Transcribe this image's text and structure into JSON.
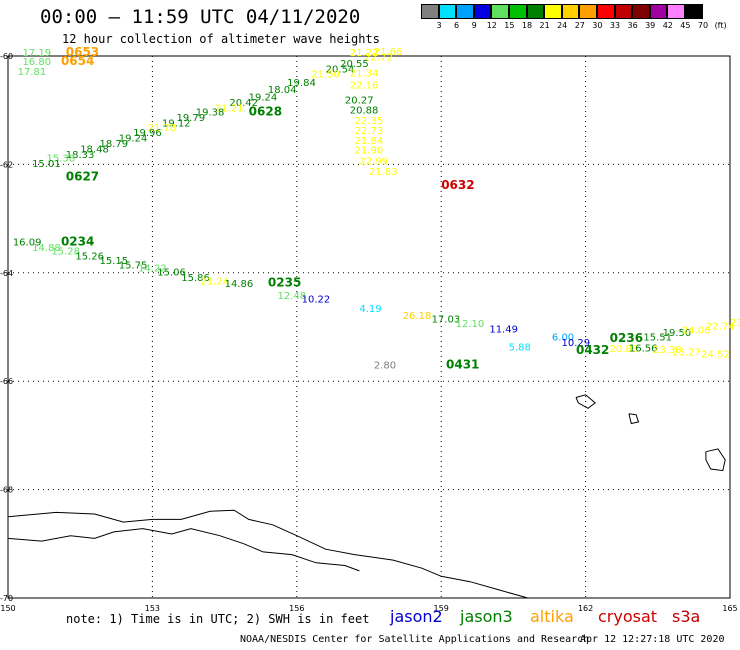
{
  "header": {
    "title": "00:00 – 11:59 UTC 04/11/2020",
    "subtitle": "12 hour collection of altimeter wave heights"
  },
  "colorbar": {
    "labels": [
      "3",
      "6",
      "9",
      "12",
      "15",
      "18",
      "21",
      "24",
      "27",
      "30",
      "33",
      "36",
      "39",
      "42",
      "45",
      "70",
      "(ft)"
    ],
    "colors": [
      "#808080",
      "#00e0ff",
      "#00a0ff",
      "#0000e0",
      "#60e060",
      "#00c000",
      "#008000",
      "#ffff00",
      "#ffd000",
      "#ffa000",
      "#ff0000",
      "#c00000",
      "#800000",
      "#a000a0",
      "#ff80ff",
      "#000000"
    ]
  },
  "axes": {
    "lon_ticks": [
      "150",
      "153",
      "156",
      "159",
      "162",
      "165"
    ],
    "lat_ticks": [
      "-60",
      "-62",
      "-64",
      "-66",
      "-68",
      "-70"
    ]
  },
  "legend": {
    "jason2": {
      "label": "jason2",
      "color": "#0000d0"
    },
    "jason3": {
      "label": "jason3",
      "color": "#008000"
    },
    "altika": {
      "label": "altika",
      "color": "#ffa000"
    },
    "cryosat": {
      "label": "cryosat",
      "color": "#d00000"
    },
    "s3a": {
      "label": "s3a",
      "color": "#c00000"
    }
  },
  "footer": {
    "note": "note: 1) Time is in UTC; 2) SWH is in feet",
    "credit": "NOAA/NESDIS Center for Satellite Applications and Research",
    "generated": "Apr 12 12:27:18 UTC 2020"
  },
  "chart_data": {
    "type": "scatter",
    "title": "12 hour collection of altimeter wave heights",
    "xlim": [
      150,
      165
    ],
    "ylim": [
      -70,
      -60
    ],
    "units": "ft",
    "pass_labels": [
      {
        "text": "0653",
        "lon": 151.2,
        "lat": -60.0,
        "color": "#ffa000"
      },
      {
        "text": "0654",
        "lon": 151.1,
        "lat": -60.17,
        "color": "#ffa000"
      },
      {
        "text": "0628",
        "lon": 155.0,
        "lat": -61.1,
        "color": "#008000"
      },
      {
        "text": "0627",
        "lon": 151.2,
        "lat": -62.3,
        "color": "#008000"
      },
      {
        "text": "0632",
        "lon": 159.0,
        "lat": -62.45,
        "color": "#d00000"
      },
      {
        "text": "0234",
        "lon": 151.1,
        "lat": -63.5,
        "color": "#008000"
      },
      {
        "text": "0235",
        "lon": 155.4,
        "lat": -64.25,
        "color": "#008000"
      },
      {
        "text": "0431",
        "lon": 159.1,
        "lat": -65.77,
        "color": "#008000"
      },
      {
        "text": "0432",
        "lon": 161.8,
        "lat": -65.5,
        "color": "#008000"
      },
      {
        "text": "0236",
        "lon": 162.5,
        "lat": -65.28,
        "color": "#008000"
      }
    ],
    "points": [
      {
        "v": "17.19",
        "lon": 150.3,
        "lat": -60.0,
        "color": "#60e060"
      },
      {
        "v": "16.80",
        "lon": 150.3,
        "lat": -60.17,
        "color": "#60e060"
      },
      {
        "v": "17.81",
        "lon": 150.2,
        "lat": -60.35,
        "color": "#60e060"
      },
      {
        "v": "21.22",
        "lon": 157.1,
        "lat": -60.0,
        "color": "#ffff00"
      },
      {
        "v": "21.66",
        "lon": 157.6,
        "lat": -59.98,
        "color": "#ffff00"
      },
      {
        "v": "22.72",
        "lon": 157.4,
        "lat": -60.08,
        "color": "#ffff00"
      },
      {
        "v": "20.55",
        "lon": 156.9,
        "lat": -60.2,
        "color": "#008000"
      },
      {
        "v": "20.54",
        "lon": 156.6,
        "lat": -60.3,
        "color": "#008000"
      },
      {
        "v": "21.34",
        "lon": 157.1,
        "lat": -60.38,
        "color": "#ffff00"
      },
      {
        "v": "21.50",
        "lon": 156.3,
        "lat": -60.4,
        "color": "#ffff00"
      },
      {
        "v": "19.84",
        "lon": 155.8,
        "lat": -60.55,
        "color": "#008000"
      },
      {
        "v": "18.04",
        "lon": 155.4,
        "lat": -60.68,
        "color": "#008000"
      },
      {
        "v": "22.16",
        "lon": 157.1,
        "lat": -60.6,
        "color": "#ffff00"
      },
      {
        "v": "19.24",
        "lon": 155.0,
        "lat": -60.82,
        "color": "#008000"
      },
      {
        "v": "20.42",
        "lon": 154.6,
        "lat": -60.92,
        "color": "#008000"
      },
      {
        "v": "20.27",
        "lon": 157.0,
        "lat": -60.88,
        "color": "#008000"
      },
      {
        "v": "20.88",
        "lon": 157.1,
        "lat": -61.06,
        "color": "#008000"
      },
      {
        "v": "21.21",
        "lon": 154.3,
        "lat": -61.02,
        "color": "#ffff00"
      },
      {
        "v": "19.38",
        "lon": 153.9,
        "lat": -61.1,
        "color": "#008000"
      },
      {
        "v": "19.79",
        "lon": 153.5,
        "lat": -61.2,
        "color": "#008000"
      },
      {
        "v": "22.35",
        "lon": 157.2,
        "lat": -61.25,
        "color": "#ffff00"
      },
      {
        "v": "19.12",
        "lon": 153.2,
        "lat": -61.3,
        "color": "#008000"
      },
      {
        "v": "21.78",
        "lon": 152.9,
        "lat": -61.38,
        "color": "#ffff00"
      },
      {
        "v": "22.73",
        "lon": 157.2,
        "lat": -61.44,
        "color": "#ffff00"
      },
      {
        "v": "19.96",
        "lon": 152.6,
        "lat": -61.48,
        "color": "#008000"
      },
      {
        "v": "19.24",
        "lon": 152.3,
        "lat": -61.58,
        "color": "#008000"
      },
      {
        "v": "21.84",
        "lon": 157.2,
        "lat": -61.62,
        "color": "#ffff00"
      },
      {
        "v": "18.79",
        "lon": 151.9,
        "lat": -61.68,
        "color": "#008000"
      },
      {
        "v": "21.90",
        "lon": 157.2,
        "lat": -61.8,
        "color": "#ffff00"
      },
      {
        "v": "18.48",
        "lon": 151.5,
        "lat": -61.78,
        "color": "#008000"
      },
      {
        "v": "18.33",
        "lon": 151.2,
        "lat": -61.88,
        "color": "#008000"
      },
      {
        "v": "15.38",
        "lon": 150.8,
        "lat": -61.95,
        "color": "#60e060"
      },
      {
        "v": "22.99",
        "lon": 157.3,
        "lat": -62.0,
        "color": "#ffff00"
      },
      {
        "v": "15.01",
        "lon": 150.5,
        "lat": -62.05,
        "color": "#008000"
      },
      {
        "v": "21.83",
        "lon": 157.5,
        "lat": -62.2,
        "color": "#ffff00"
      },
      {
        "v": "16.09",
        "lon": 150.1,
        "lat": -63.5,
        "color": "#008000"
      },
      {
        "v": "14.88",
        "lon": 150.5,
        "lat": -63.6,
        "color": "#60e060"
      },
      {
        "v": "15.28",
        "lon": 150.9,
        "lat": -63.66,
        "color": "#60e060"
      },
      {
        "v": "15.26",
        "lon": 151.4,
        "lat": -63.75,
        "color": "#008000"
      },
      {
        "v": "15.15",
        "lon": 151.9,
        "lat": -63.84,
        "color": "#008000"
      },
      {
        "v": "15.75",
        "lon": 152.3,
        "lat": -63.92,
        "color": "#008000"
      },
      {
        "v": "14.22",
        "lon": 152.7,
        "lat": -63.98,
        "color": "#60e060"
      },
      {
        "v": "15.06",
        "lon": 153.1,
        "lat": -64.05,
        "color": "#008000"
      },
      {
        "v": "15.86",
        "lon": 153.6,
        "lat": -64.15,
        "color": "#008000"
      },
      {
        "v": "21.24",
        "lon": 154.0,
        "lat": -64.22,
        "color": "#ffff00"
      },
      {
        "v": "14.86",
        "lon": 154.5,
        "lat": -64.26,
        "color": "#008000"
      },
      {
        "v": "12.48",
        "lon": 155.6,
        "lat": -64.48,
        "color": "#60e060"
      },
      {
        "v": "10.22",
        "lon": 156.1,
        "lat": -64.55,
        "color": "#0000d0"
      },
      {
        "v": "4.19",
        "lon": 157.3,
        "lat": -64.72,
        "color": "#00e0ff"
      },
      {
        "v": "26.18",
        "lon": 158.2,
        "lat": -64.85,
        "color": "#ffd000"
      },
      {
        "v": "17.03",
        "lon": 158.8,
        "lat": -64.92,
        "color": "#008000"
      },
      {
        "v": "12.10",
        "lon": 159.3,
        "lat": -65.0,
        "color": "#60e060"
      },
      {
        "v": "11.49",
        "lon": 160.0,
        "lat": -65.1,
        "color": "#0000d0"
      },
      {
        "v": "5.88",
        "lon": 160.4,
        "lat": -65.43,
        "color": "#00e0ff"
      },
      {
        "v": "6.00",
        "lon": 161.3,
        "lat": -65.25,
        "color": "#00a0ff"
      },
      {
        "v": "10.29",
        "lon": 161.5,
        "lat": -65.35,
        "color": "#0000d0"
      },
      {
        "v": "15.51",
        "lon": 163.2,
        "lat": -65.25,
        "color": "#008000"
      },
      {
        "v": "19.50",
        "lon": 163.6,
        "lat": -65.17,
        "color": "#008000"
      },
      {
        "v": "24.06",
        "lon": 164.0,
        "lat": -65.12,
        "color": "#ffff00"
      },
      {
        "v": "22.74",
        "lon": 164.5,
        "lat": -65.05,
        "color": "#ffff00"
      },
      {
        "v": "23.88",
        "lon": 165.0,
        "lat": -64.98,
        "color": "#ffff00"
      },
      {
        "v": "20.83",
        "lon": 162.5,
        "lat": -65.46,
        "color": "#ffff00"
      },
      {
        "v": "16.56",
        "lon": 162.9,
        "lat": -65.45,
        "color": "#008000"
      },
      {
        "v": "23.38",
        "lon": 163.4,
        "lat": -65.48,
        "color": "#ffff00"
      },
      {
        "v": "23.27",
        "lon": 163.8,
        "lat": -65.53,
        "color": "#ffff00"
      },
      {
        "v": "24.52",
        "lon": 164.4,
        "lat": -65.56,
        "color": "#ffff00"
      },
      {
        "v": "2.80",
        "lon": 157.6,
        "lat": -65.77,
        "color": "#808080"
      }
    ],
    "coastline": [
      [
        [
          150,
          -68.5
        ],
        [
          151,
          -68.42
        ],
        [
          151.8,
          -68.45
        ],
        [
          152.4,
          -68.6
        ],
        [
          153.0,
          -68.55
        ],
        [
          153.6,
          -68.55
        ],
        [
          154.2,
          -68.4
        ],
        [
          154.7,
          -68.38
        ],
        [
          155.0,
          -68.55
        ],
        [
          155.5,
          -68.65
        ],
        [
          156.0,
          -68.85
        ],
        [
          156.6,
          -69.1
        ],
        [
          157.2,
          -69.2
        ],
        [
          158.0,
          -69.3
        ],
        [
          158.6,
          -69.45
        ],
        [
          159.0,
          -69.6
        ],
        [
          159.6,
          -69.7
        ],
        [
          160.2,
          -69.85
        ],
        [
          160.8,
          -70.0
        ]
      ],
      [
        [
          150,
          -68.9
        ],
        [
          150.7,
          -68.95
        ],
        [
          151.3,
          -68.85
        ],
        [
          151.8,
          -68.9
        ],
        [
          152.2,
          -68.78
        ],
        [
          152.8,
          -68.72
        ],
        [
          153.4,
          -68.82
        ],
        [
          153.8,
          -68.72
        ],
        [
          154.4,
          -68.85
        ],
        [
          154.9,
          -69.0
        ],
        [
          155.3,
          -69.15
        ],
        [
          155.9,
          -69.2
        ],
        [
          156.4,
          -69.35
        ],
        [
          157.0,
          -69.4
        ],
        [
          157.3,
          -69.5
        ]
      ],
      [
        [
          161.8,
          -66.3
        ],
        [
          162.0,
          -66.25
        ],
        [
          162.2,
          -66.4
        ],
        [
          162.05,
          -66.5
        ],
        [
          161.85,
          -66.4
        ],
        [
          161.8,
          -66.3
        ]
      ],
      [
        [
          162.9,
          -66.6
        ],
        [
          163.05,
          -66.62
        ],
        [
          163.1,
          -66.75
        ],
        [
          162.95,
          -66.78
        ],
        [
          162.9,
          -66.6
        ]
      ],
      [
        [
          164.5,
          -67.3
        ],
        [
          164.75,
          -67.25
        ],
        [
          164.9,
          -67.45
        ],
        [
          164.85,
          -67.65
        ],
        [
          164.6,
          -67.62
        ],
        [
          164.5,
          -67.45
        ],
        [
          164.5,
          -67.3
        ]
      ]
    ]
  }
}
